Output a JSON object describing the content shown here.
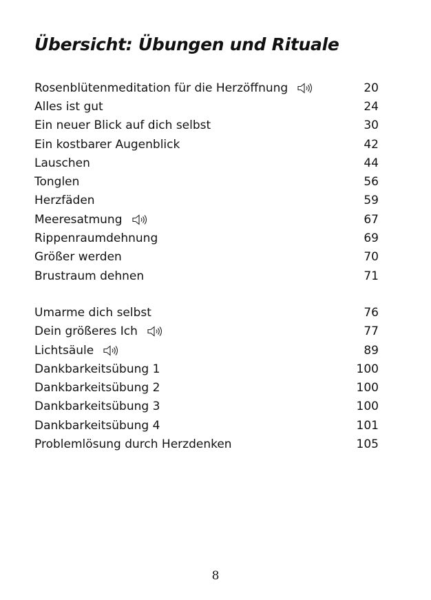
{
  "header": {
    "title": "Übersicht: Übungen und Rituale"
  },
  "groups": [
    {
      "entries": [
        {
          "label": "Rosenblütenmeditation für die Herzöffnung",
          "page": "20",
          "audio": true
        },
        {
          "label": "Alles ist gut",
          "page": "24",
          "audio": false
        },
        {
          "label": "Ein neuer Blick auf dich selbst",
          "page": "30",
          "audio": false
        },
        {
          "label": "Ein kostbarer Augenblick",
          "page": "42",
          "audio": false
        },
        {
          "label": "Lauschen",
          "page": "44",
          "audio": false
        },
        {
          "label": "Tonglen",
          "page": "56",
          "audio": false
        },
        {
          "label": "Herzfäden",
          "page": "59",
          "audio": false
        },
        {
          "label": "Meeresatmung",
          "page": "67",
          "audio": true
        },
        {
          "label": "Rippenraumdehnung",
          "page": "69",
          "audio": false
        },
        {
          "label": "Größer werden",
          "page": "70",
          "audio": false
        },
        {
          "label": "Brustraum dehnen",
          "page": "71",
          "audio": false
        }
      ]
    },
    {
      "entries": [
        {
          "label": "Umarme dich selbst",
          "page": "76",
          "audio": false
        },
        {
          "label": "Dein größeres Ich",
          "page": "77",
          "audio": true
        },
        {
          "label": "Lichtsäule",
          "page": "89",
          "audio": true
        },
        {
          "label": "Dankbarkeitsübung 1",
          "page": "100",
          "audio": false
        },
        {
          "label": "Dankbarkeitsübung 2",
          "page": "100",
          "audio": false
        },
        {
          "label": "Dankbarkeitsübung 3",
          "page": "100",
          "audio": false
        },
        {
          "label": "Dankbarkeitsübung 4",
          "page": "101",
          "audio": false
        },
        {
          "label": "Problemlösung durch Herzdenken",
          "page": "105",
          "audio": false
        }
      ]
    }
  ],
  "footer": {
    "page_number": "8"
  }
}
